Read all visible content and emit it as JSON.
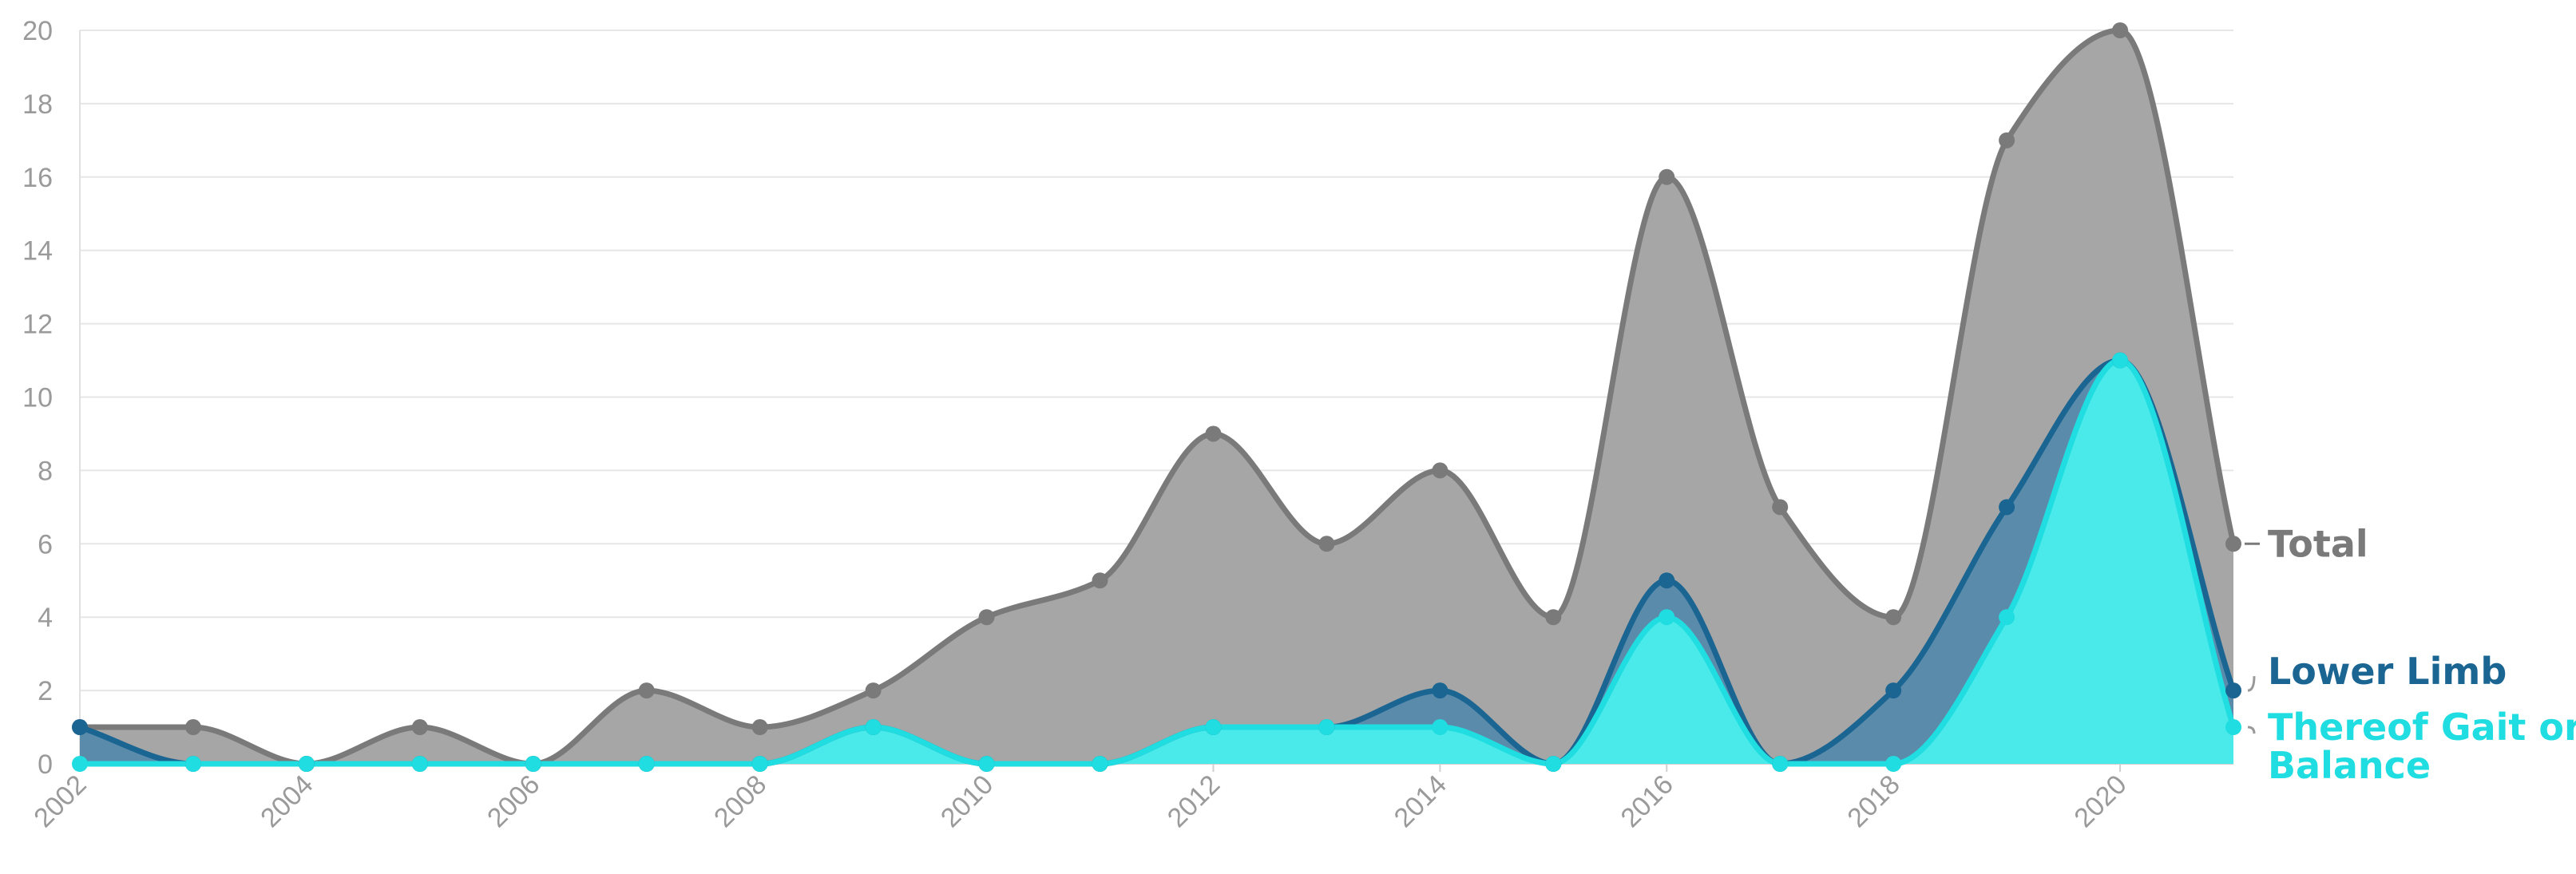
{
  "chart_data": {
    "type": "area",
    "x": [
      2002,
      2003,
      2004,
      2005,
      2006,
      2007,
      2008,
      2009,
      2010,
      2011,
      2012,
      2013,
      2014,
      2015,
      2016,
      2017,
      2018,
      2019,
      2020,
      2021
    ],
    "xticks": [
      "2002",
      "2004",
      "2006",
      "2008",
      "2010",
      "2012",
      "2014",
      "2016",
      "2018",
      "2020"
    ],
    "yticks": [
      "0",
      "2",
      "4",
      "6",
      "8",
      "10",
      "12",
      "14",
      "16",
      "18",
      "20"
    ],
    "ylim": [
      0,
      20
    ],
    "xlim": [
      2002,
      2021
    ],
    "grid": true,
    "legend": "end-of-line labels, right",
    "series": [
      {
        "name": "Total",
        "color": "#7a7a7a",
        "fill": "#a6a6a6",
        "values": [
          1,
          1,
          0,
          1,
          0,
          2,
          1,
          2,
          4,
          5,
          9,
          6,
          8,
          4,
          16,
          7,
          4,
          17,
          20,
          6
        ]
      },
      {
        "name": "Lower Limb",
        "color": "#1a6592",
        "fill": "#5b8bab",
        "values": [
          1,
          0,
          0,
          0,
          0,
          0,
          0,
          1,
          0,
          0,
          1,
          1,
          2,
          0,
          5,
          0,
          2,
          7,
          11,
          2
        ]
      },
      {
        "name": "Thereof Gait or Balance",
        "label_lines": [
          "Thereof Gait or",
          "Balance"
        ],
        "color": "#1fdde0",
        "fill": "#4aeaea",
        "values": [
          0,
          0,
          0,
          0,
          0,
          0,
          0,
          1,
          0,
          0,
          1,
          1,
          1,
          0,
          4,
          0,
          0,
          4,
          11,
          1
        ]
      }
    ]
  }
}
